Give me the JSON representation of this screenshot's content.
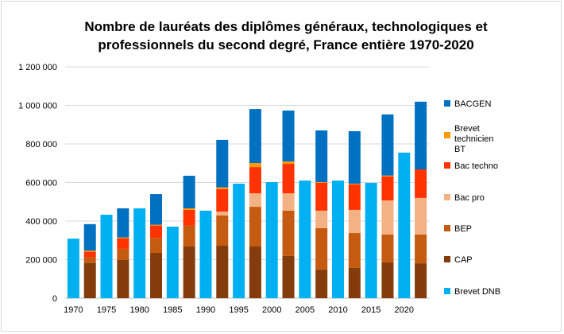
{
  "chart_data": {
    "type": "bar",
    "stacked": true,
    "title": "Nombre de lauréats des diplômes généraux, technologiques et professionnels du second degré, France entière 1970-2020",
    "xlabel": "",
    "ylabel": "",
    "ylim": [
      0,
      1200000
    ],
    "yticks": [
      "0",
      "200 000",
      "400 000",
      "600 000",
      "800 000",
      "1 000 000",
      "1 200 000"
    ],
    "grid": true,
    "legend": "right",
    "categories": [
      "1970",
      "",
      "1975",
      "",
      "1980",
      "",
      "1985",
      "",
      "1990",
      "",
      "1995",
      "",
      "2000",
      "",
      "2005",
      "",
      "2010",
      "",
      "2015",
      "",
      "2020",
      ""
    ],
    "series": [
      {
        "name": "Brevet DNB",
        "color": "#00B0F0",
        "values": [
          309000,
          0,
          433000,
          0,
          466000,
          0,
          371000,
          0,
          454000,
          0,
          594000,
          0,
          602000,
          0,
          610000,
          0,
          610000,
          0,
          598000,
          0,
          755000,
          0
        ]
      },
      {
        "name": "CAP",
        "color": "#843C0C",
        "values": [
          0,
          183000,
          0,
          198000,
          0,
          235000,
          0,
          268000,
          0,
          272000,
          0,
          268000,
          0,
          219000,
          0,
          148000,
          0,
          157000,
          0,
          186000,
          0,
          181000
        ]
      },
      {
        "name": "BEP",
        "color": "#C55A11",
        "values": [
          0,
          29000,
          0,
          58000,
          0,
          78000,
          0,
          109000,
          0,
          157000,
          0,
          206000,
          0,
          235000,
          0,
          215000,
          0,
          181000,
          0,
          144000,
          0,
          149000
        ]
      },
      {
        "name": "Bac pro",
        "color": "#F4B183",
        "values": [
          0,
          0,
          0,
          0,
          0,
          0,
          0,
          0,
          0,
          20000,
          0,
          70000,
          0,
          90000,
          0,
          91000,
          0,
          120000,
          0,
          177000,
          0,
          190000
        ]
      },
      {
        "name": "Bac techno",
        "color": "#FF3300",
        "values": [
          0,
          29000,
          0,
          55000,
          0,
          64000,
          0,
          81000,
          0,
          117000,
          0,
          136000,
          0,
          153000,
          0,
          145000,
          0,
          133000,
          0,
          125000,
          0,
          148000
        ]
      },
      {
        "name": "Brevet technicien BT",
        "color": "#FF9900",
        "values": [
          0,
          6000,
          0,
          4000,
          0,
          4000,
          0,
          8000,
          0,
          9000,
          0,
          21000,
          0,
          12000,
          0,
          3000,
          0,
          3000,
          0,
          4000,
          0,
          0
        ]
      },
      {
        "name": "BACGEN",
        "color": "#0070C0",
        "values": [
          0,
          137000,
          0,
          151000,
          0,
          159000,
          0,
          169000,
          0,
          246000,
          0,
          280000,
          0,
          264000,
          0,
          268000,
          0,
          272000,
          0,
          317000,
          0,
          351000
        ]
      }
    ]
  }
}
